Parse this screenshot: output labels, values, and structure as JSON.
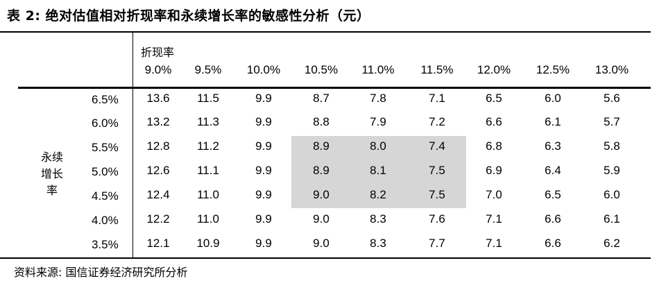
{
  "title": "表 2:  绝对估值相对折现率和永续增长率的敏感性分析（元）",
  "header_label": "折现率",
  "side_label": [
    "永续",
    "增长",
    "率"
  ],
  "columns": [
    "9.0%",
    "9.5%",
    "10.0%",
    "10.5%",
    "11.0%",
    "11.5%",
    "12.0%",
    "12.5%",
    "13.0%"
  ],
  "rows": [
    {
      "label": "6.5%",
      "values": [
        "13.6",
        "11.5",
        "9.9",
        "8.7",
        "7.8",
        "7.1",
        "6.5",
        "6.0",
        "5.6"
      ]
    },
    {
      "label": "6.0%",
      "values": [
        "13.2",
        "11.3",
        "9.9",
        "8.8",
        "7.9",
        "7.2",
        "6.6",
        "6.1",
        "5.7"
      ]
    },
    {
      "label": "5.5%",
      "values": [
        "12.8",
        "11.2",
        "9.9",
        "8.9",
        "8.0",
        "7.4",
        "6.8",
        "6.3",
        "5.8"
      ]
    },
    {
      "label": "5.0%",
      "values": [
        "12.6",
        "11.1",
        "9.9",
        "8.9",
        "8.1",
        "7.5",
        "6.9",
        "6.4",
        "5.9"
      ]
    },
    {
      "label": "4.5%",
      "values": [
        "12.4",
        "11.0",
        "9.9",
        "9.0",
        "8.2",
        "7.5",
        "7.0",
        "6.5",
        "6.0"
      ]
    },
    {
      "label": "4.0%",
      "values": [
        "12.2",
        "11.0",
        "9.9",
        "9.0",
        "8.3",
        "7.6",
        "7.1",
        "6.6",
        "6.1"
      ]
    },
    {
      "label": "3.5%",
      "values": [
        "12.1",
        "10.9",
        "9.9",
        "9.0",
        "8.3",
        "7.7",
        "7.1",
        "6.6",
        "6.2"
      ]
    }
  ],
  "source": "资料来源:  国信证券经济研究所分析",
  "colors": {
    "highlight": "#d6d6d6",
    "rule": "#000000"
  }
}
